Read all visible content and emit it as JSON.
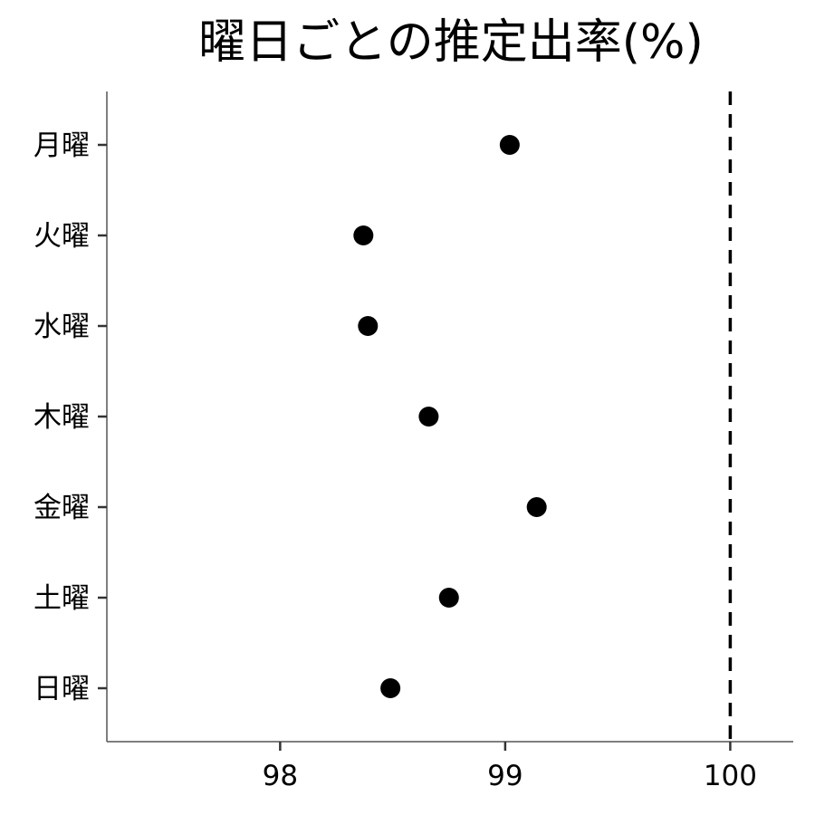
{
  "chart_data": {
    "type": "scatter",
    "title": "曜日ごとの推定出率(%)",
    "xlabel": "",
    "ylabel": "",
    "categories": [
      "月曜",
      "火曜",
      "水曜",
      "木曜",
      "金曜",
      "土曜",
      "日曜"
    ],
    "values": [
      99.02,
      98.37,
      98.39,
      98.66,
      99.14,
      98.75,
      98.49
    ],
    "xlim": [
      97.23,
      100.28
    ],
    "xticks": [
      98,
      99,
      100
    ],
    "xtick_labels": [
      "98",
      "99",
      "100"
    ],
    "reference_line": {
      "x": 100,
      "style": "dashed",
      "color": "#000000"
    },
    "grid": false,
    "legend": "none",
    "point_color": "#000000",
    "axis_color": "#555555"
  }
}
